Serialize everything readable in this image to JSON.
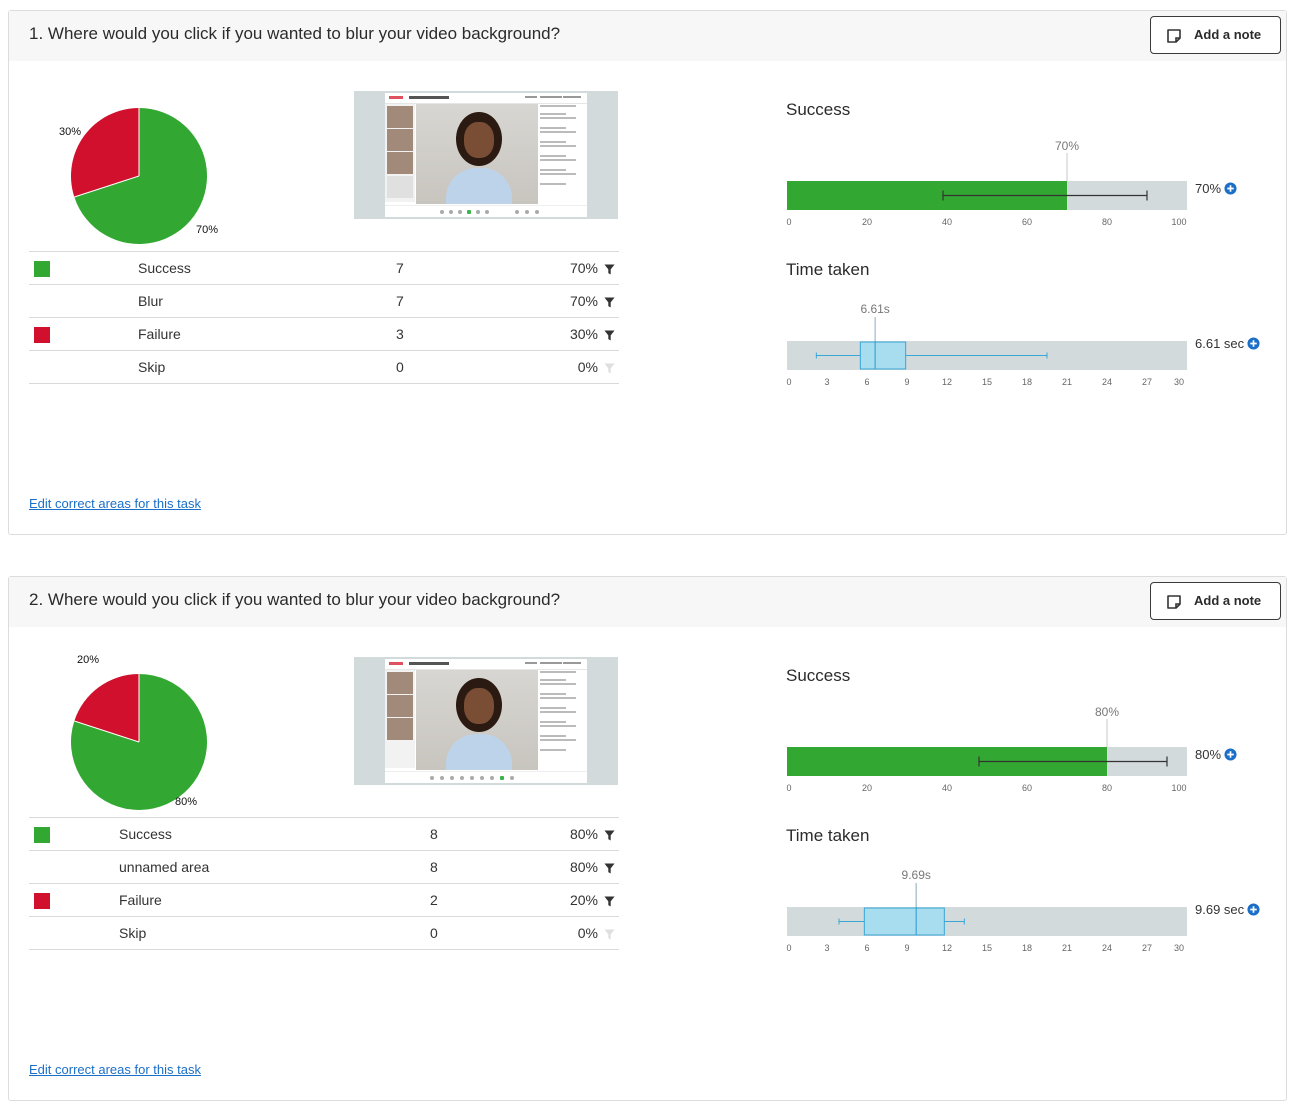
{
  "tasks": [
    {
      "title": "1. Where would you click if you wanted to blur your video background?",
      "note_button": "Add a note",
      "pie": {
        "success_pct": 70,
        "failure_pct": 30,
        "success_label": "70%",
        "failure_label": "30%"
      },
      "results": [
        {
          "swatch": "success",
          "label": "Success",
          "count": "7",
          "pct": "70%",
          "filter": true
        },
        {
          "swatch": "",
          "label": "Blur",
          "count": "7",
          "pct": "70%",
          "filter": true
        },
        {
          "swatch": "failure",
          "label": "Failure",
          "count": "3",
          "pct": "30%",
          "filter": true
        },
        {
          "swatch": "",
          "label": "Skip",
          "count": "0",
          "pct": "0%",
          "filter": false
        }
      ],
      "edit_link": "Edit correct areas for this task",
      "success_title": "Success",
      "success_value": "70%",
      "success_marker": "70%",
      "time_title": "Time taken",
      "time_value": "6.61 sec",
      "time_marker": "6.61s"
    },
    {
      "title": "2. Where would you click if you wanted to blur your video background?",
      "note_button": "Add a note",
      "pie": {
        "success_pct": 80,
        "failure_pct": 20,
        "success_label": "80%",
        "failure_label": "20%"
      },
      "results": [
        {
          "swatch": "success",
          "label": "Success",
          "count": "8",
          "pct": "80%",
          "filter": true
        },
        {
          "swatch": "",
          "label": "unnamed area",
          "count": "8",
          "pct": "80%",
          "filter": true
        },
        {
          "swatch": "failure",
          "label": "Failure",
          "count": "2",
          "pct": "20%",
          "filter": true
        },
        {
          "swatch": "",
          "label": "Skip",
          "count": "0",
          "pct": "0%",
          "filter": false
        }
      ],
      "edit_link": "Edit correct areas for this task",
      "success_title": "Success",
      "success_value": "80%",
      "success_marker": "80%",
      "time_title": "Time taken",
      "time_value": "9.69 sec",
      "time_marker": "9.69s"
    }
  ],
  "chart_data": [
    {
      "type": "pie",
      "labels": [
        "Success",
        "Failure"
      ],
      "values": [
        70,
        30
      ],
      "colors": [
        "#32a832",
        "#d0102c"
      ]
    },
    {
      "type": "bar",
      "title": "Success",
      "value": 70,
      "ci": [
        39,
        90
      ],
      "xlim": [
        0,
        100
      ],
      "xticks": [
        0,
        20,
        40,
        60,
        80,
        100
      ]
    },
    {
      "type": "boxplot",
      "title": "Time taken",
      "median": 6.61,
      "q1": 5.5,
      "q3": 8.9,
      "whisker_low": 2.2,
      "whisker_high": 19.5,
      "xlim": [
        0,
        30
      ],
      "xticks": [
        0,
        3,
        6,
        9,
        12,
        15,
        18,
        21,
        24,
        27,
        30
      ]
    },
    {
      "type": "pie",
      "labels": [
        "Success",
        "Failure"
      ],
      "values": [
        80,
        20
      ],
      "colors": [
        "#32a832",
        "#d0102c"
      ]
    },
    {
      "type": "bar",
      "title": "Success",
      "value": 80,
      "ci": [
        48,
        95
      ],
      "xlim": [
        0,
        100
      ],
      "xticks": [
        0,
        20,
        40,
        60,
        80,
        100
      ]
    },
    {
      "type": "boxplot",
      "title": "Time taken",
      "median": 9.69,
      "q1": 5.8,
      "q3": 11.8,
      "whisker_low": 3.9,
      "whisker_high": 13.3,
      "xlim": [
        0,
        30
      ],
      "xticks": [
        0,
        3,
        6,
        9,
        12,
        15,
        18,
        21,
        24,
        27,
        30
      ]
    }
  ],
  "colors": {
    "success": "#32a832",
    "failure": "#d0102c",
    "link": "#1b6fc8",
    "track": "#d3dadc",
    "box": "#a8dcef",
    "box_stroke": "#3aa6d6",
    "accent": "#1b6fc8"
  },
  "icons": {
    "note": "note-icon",
    "filter": "filter-icon",
    "plus": "plus-circle-icon"
  }
}
